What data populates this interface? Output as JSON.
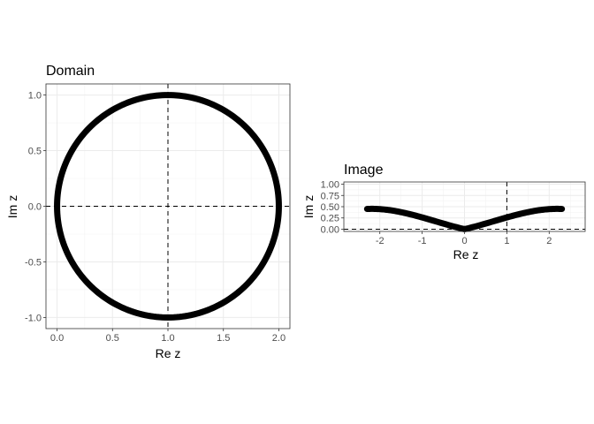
{
  "chart_data": [
    {
      "type": "line",
      "title": "Domain",
      "xlabel": "Re z",
      "ylabel": "Im z",
      "xlim": [
        -0.1,
        2.1
      ],
      "ylim": [
        -1.1,
        1.1
      ],
      "x_ticks": [
        0.0,
        0.5,
        1.0,
        1.5,
        2.0
      ],
      "x_tick_labels": [
        "0.0",
        "0.5",
        "1.0",
        "1.5",
        "2.0"
      ],
      "y_ticks": [
        1.0,
        0.5,
        0.0,
        -0.5,
        -1.0
      ],
      "y_tick_labels": [
        "1.0",
        "0.5",
        "0.0",
        "-0.5",
        "-1.0"
      ],
      "reference_lines": {
        "vertical": 1.0,
        "horizontal": 0.0
      },
      "curve": {
        "name": "circle |z - 1| = 1",
        "center": [
          1.0,
          0.0
        ],
        "radius": 1.0,
        "color": "#000000"
      },
      "grid": true
    },
    {
      "type": "line",
      "title": "Image",
      "xlabel": "Re z",
      "ylabel": "Im z",
      "xlim": [
        -2.85,
        2.85
      ],
      "ylim": [
        -0.05,
        1.05
      ],
      "x_ticks": [
        -2,
        -1,
        0,
        1,
        2
      ],
      "x_tick_labels": [
        "-2",
        "-1",
        "0",
        "1",
        "2"
      ],
      "y_ticks": [
        1.0,
        0.75,
        0.5,
        0.25,
        0.0
      ],
      "y_tick_labels": [
        "1.00",
        "0.75",
        "0.50",
        "0.25",
        "0.00"
      ],
      "reference_lines": {
        "vertical": 1.0,
        "horizontal": 0.0
      },
      "curve": {
        "name": "image of domain circle (two lobes)",
        "color": "#000000"
      },
      "grid": true
    }
  ]
}
